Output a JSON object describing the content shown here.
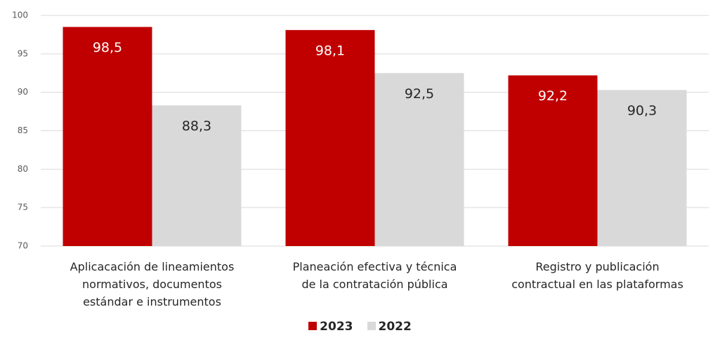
{
  "chart_data": {
    "type": "bar",
    "categories": [
      "Aplicacación de lineamientos\nnormativos, documentos\nestándar e instrumentos",
      "Planeación efectiva y técnica\nde la contratación pública",
      "Registro y publicación\ncontractual en las plataformas"
    ],
    "series": [
      {
        "name": "2023",
        "color": "#c00000",
        "values": [
          98.5,
          98.1,
          92.2
        ],
        "value_labels": [
          "98,5",
          "98,1",
          "92,2"
        ]
      },
      {
        "name": "2022",
        "color": "#d9d9d9",
        "values": [
          88.3,
          92.5,
          90.3
        ],
        "value_labels": [
          "88,3",
          "92,5",
          "90,3"
        ]
      }
    ],
    "ylim": [
      70,
      100
    ],
    "yticks": [
      70,
      75,
      80,
      85,
      90,
      95,
      100
    ],
    "grid": true,
    "legend": "bottom"
  }
}
